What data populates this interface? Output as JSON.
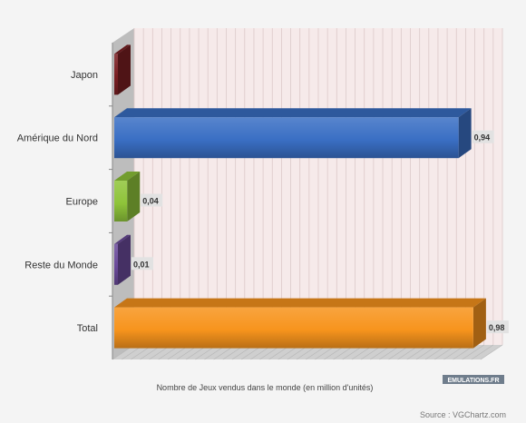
{
  "chart_data": {
    "type": "bar",
    "orientation": "horizontal",
    "categories": [
      "Japon",
      "Amérique du Nord",
      "Europe",
      "Reste du Monde",
      "Total"
    ],
    "values": [
      0,
      0.94,
      0.04,
      0.01,
      0.98
    ],
    "value_labels": [
      "",
      "0,94",
      "0,04",
      "0,01",
      "0,98"
    ],
    "colors": [
      "#7a1e22",
      "#3a6fc4",
      "#8fc43a",
      "#6a4a9a",
      "#f7941d"
    ],
    "xlabel": "Nombre de Jeux vendus dans le monde (en million d'unités)",
    "ylabel": "",
    "xlim": [
      0,
      1
    ],
    "grid": true,
    "style": "3d"
  },
  "logo": {
    "text": "EMULATIONS.FR"
  },
  "source": "Source : VGChartz.com"
}
